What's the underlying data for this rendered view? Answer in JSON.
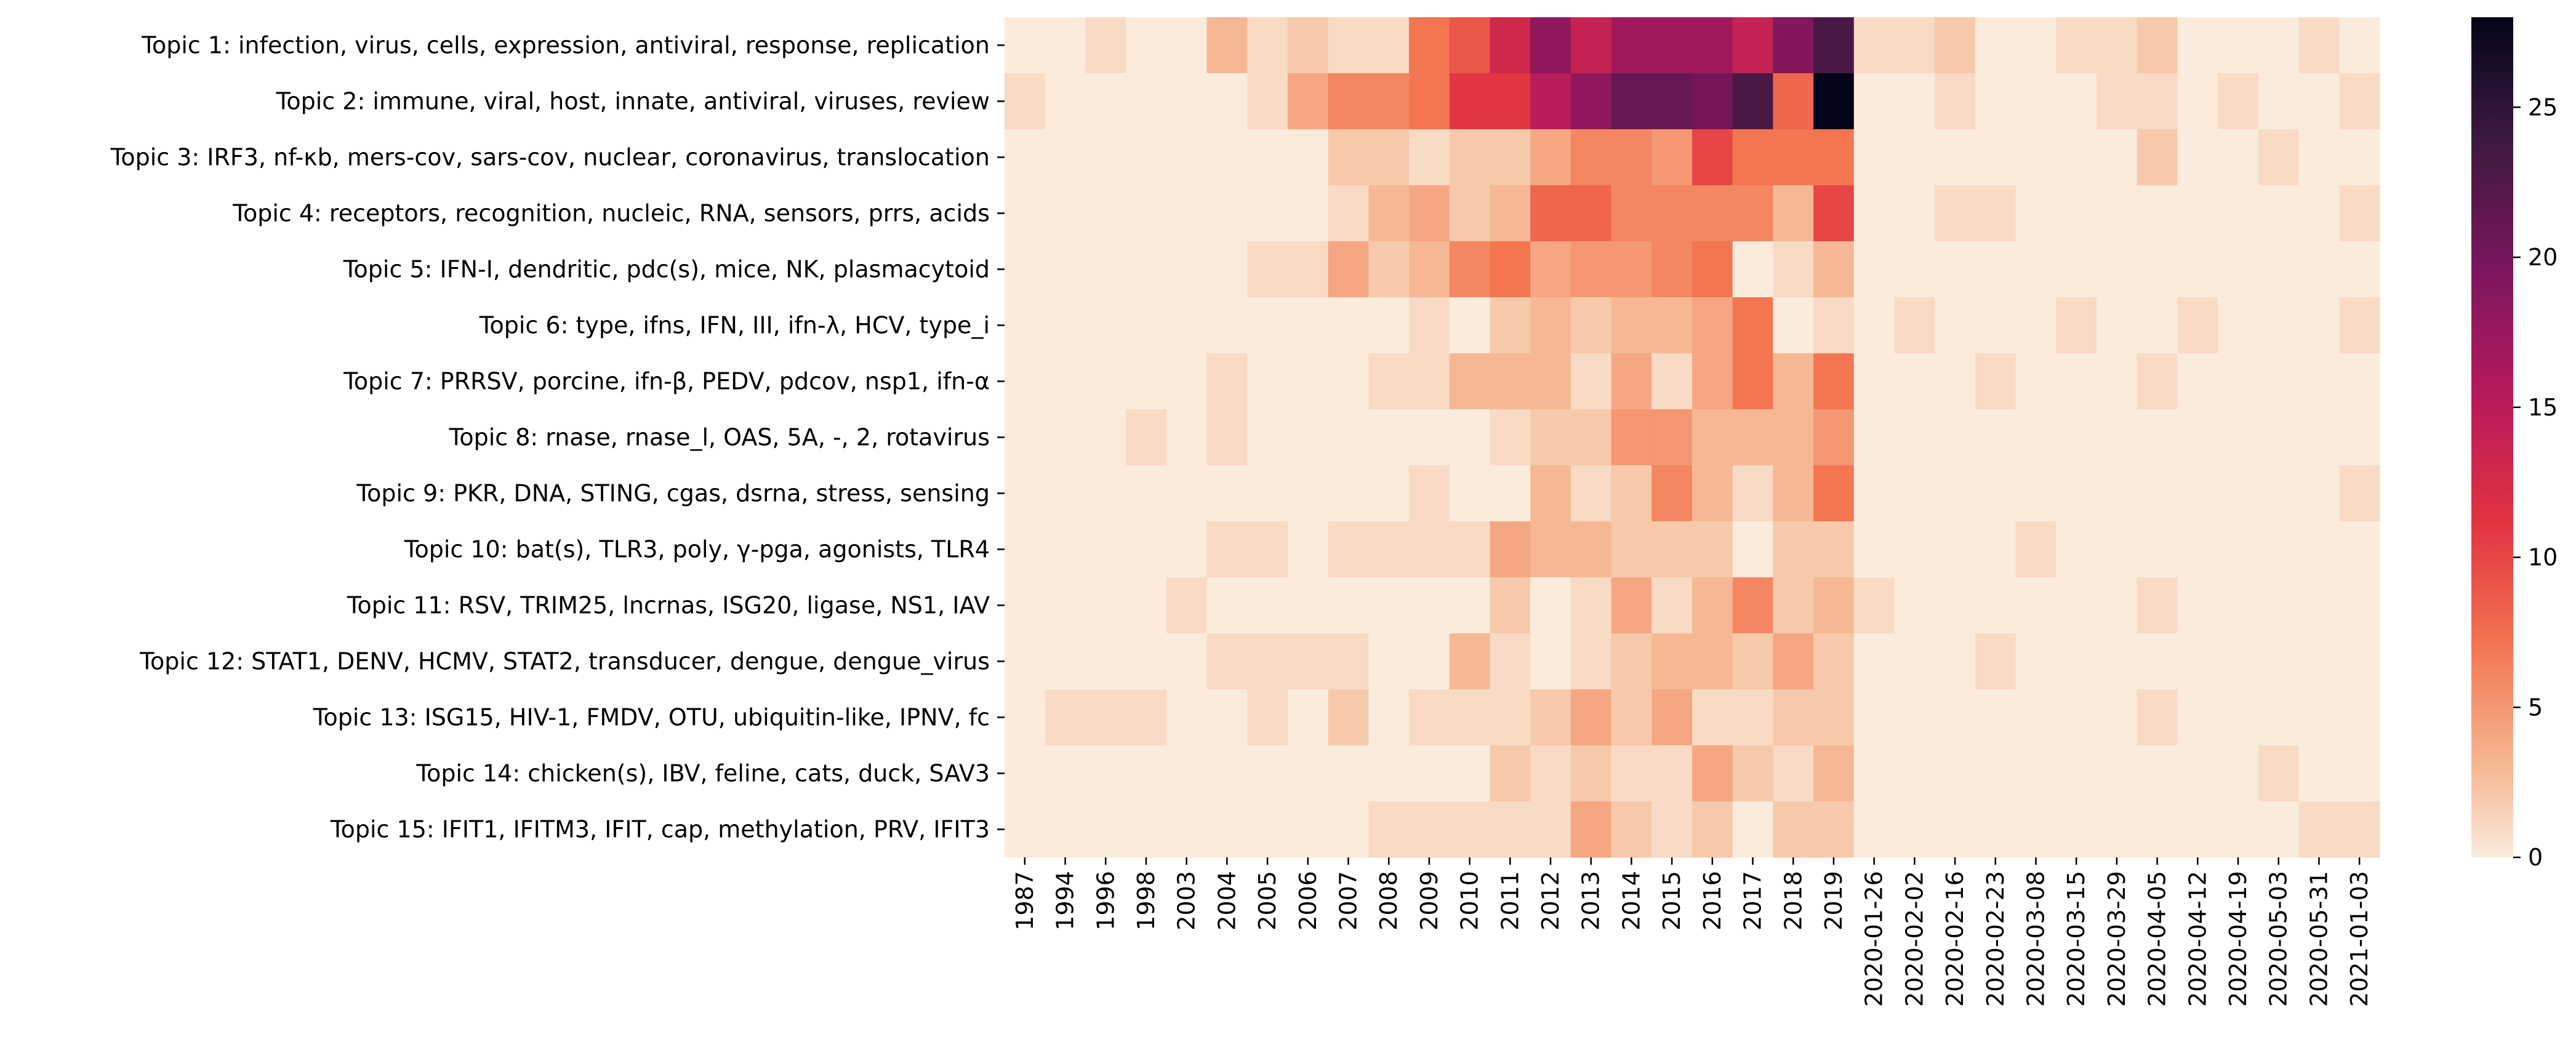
{
  "chart_data": {
    "type": "heatmap",
    "colormap": "rocket",
    "y_categories": [
      "Topic 1: infection, virus, cells, expression, antiviral, response, replication",
      "Topic 2: immune, viral, host, innate, antiviral, viruses, review",
      "Topic 3: IRF3, nf-κb, mers-cov, sars-cov, nuclear, coronavirus, translocation",
      "Topic 4: receptors, recognition, nucleic, RNA, sensors, prrs, acids",
      "Topic 5: IFN-I, dendritic, pdc(s), mice, NK, plasmacytoid",
      "Topic 6: type, ifns, IFN, III, ifn-λ, HCV, type_i",
      "Topic 7: PRRSV, porcine, ifn-β, PEDV, pdcov, nsp1, ifn-α",
      "Topic 8: rnase, rnase_l, OAS, 5A, -, 2, rotavirus",
      "Topic 9: PKR, DNA, STING, cgas, dsrna, stress, sensing",
      "Topic 10: bat(s), TLR3, poly, γ-pga, agonists, TLR4",
      "Topic 11: RSV, TRIM25, lncrnas, ISG20, ligase, NS1, IAV",
      "Topic 12: STAT1, DENV, HCMV, STAT2, transducer, dengue, dengue_virus",
      "Topic 13: ISG15, HIV-1, FMDV, OTU, ubiquitin-like, IPNV, fc",
      "Topic 14: chicken(s), IBV, feline, cats, duck, SAV3",
      "Topic 15: IFIT1, IFITM3, IFIT, cap, methylation, PRV, IFIT3"
    ],
    "x_categories": [
      "1987",
      "1994",
      "1996",
      "1998",
      "2003",
      "2004",
      "2005",
      "2006",
      "2007",
      "2008",
      "2009",
      "2010",
      "2011",
      "2012",
      "2013",
      "2014",
      "2015",
      "2016",
      "2017",
      "2018",
      "2019",
      "2020-01-26",
      "2020-02-02",
      "2020-02-16",
      "2020-02-23",
      "2020-03-08",
      "2020-03-15",
      "2020-03-29",
      "2020-04-05",
      "2020-04-12",
      "2020-04-19",
      "2020-05-03",
      "2020-05-31",
      "2021-01-03"
    ],
    "values": [
      [
        0,
        0,
        1,
        0,
        0,
        3,
        1,
        2,
        1,
        1,
        7,
        9,
        13,
        18,
        14,
        17,
        17,
        17,
        14,
        19,
        23,
        1,
        1,
        2,
        0,
        0,
        1,
        1,
        2,
        0,
        0,
        0,
        1,
        0
      ],
      [
        1,
        0,
        0,
        0,
        0,
        0,
        1,
        4,
        6,
        6,
        7,
        11,
        11,
        15,
        18,
        21,
        21,
        20,
        23,
        8,
        28,
        0,
        0,
        1,
        0,
        0,
        0,
        1,
        1,
        0,
        1,
        0,
        0,
        1
      ],
      [
        0,
        0,
        0,
        0,
        0,
        0,
        0,
        0,
        2,
        2,
        1,
        2,
        2,
        4,
        6,
        6,
        5,
        10,
        7,
        7,
        7,
        0,
        0,
        0,
        0,
        0,
        0,
        0,
        2,
        0,
        0,
        1,
        0,
        0
      ],
      [
        0,
        0,
        0,
        0,
        0,
        0,
        0,
        0,
        1,
        3,
        4,
        2,
        3,
        8,
        8,
        6,
        6,
        6,
        6,
        3,
        10,
        0,
        0,
        1,
        1,
        0,
        0,
        0,
        0,
        0,
        0,
        0,
        0,
        1
      ],
      [
        0,
        0,
        0,
        0,
        0,
        0,
        1,
        1,
        4,
        2,
        3,
        6,
        7,
        4,
        5,
        5,
        6,
        7,
        0,
        1,
        3,
        0,
        0,
        0,
        0,
        0,
        0,
        0,
        0,
        0,
        0,
        0,
        0,
        0
      ],
      [
        0,
        0,
        0,
        0,
        0,
        0,
        0,
        0,
        0,
        0,
        1,
        0,
        2,
        3,
        2,
        3,
        3,
        4,
        7,
        0,
        1,
        0,
        1,
        0,
        0,
        0,
        1,
        0,
        0,
        1,
        0,
        0,
        0,
        1
      ],
      [
        0,
        0,
        0,
        0,
        0,
        1,
        0,
        0,
        0,
        1,
        1,
        3,
        3,
        3,
        1,
        4,
        1,
        4,
        7,
        3,
        7,
        0,
        0,
        0,
        1,
        0,
        0,
        0,
        1,
        0,
        0,
        0,
        0,
        0
      ],
      [
        0,
        0,
        0,
        1,
        0,
        1,
        0,
        0,
        0,
        0,
        0,
        0,
        1,
        2,
        2,
        5,
        5,
        3,
        3,
        3,
        5,
        0,
        0,
        0,
        0,
        0,
        0,
        0,
        0,
        0,
        0,
        0,
        0,
        0
      ],
      [
        0,
        0,
        0,
        0,
        0,
        0,
        0,
        0,
        0,
        0,
        1,
        0,
        0,
        3,
        1,
        2,
        6,
        3,
        1,
        3,
        7,
        0,
        0,
        0,
        0,
        0,
        0,
        0,
        0,
        0,
        0,
        0,
        0,
        1
      ],
      [
        0,
        0,
        0,
        0,
        0,
        1,
        1,
        0,
        1,
        1,
        1,
        1,
        4,
        3,
        3,
        2,
        2,
        2,
        0,
        2,
        2,
        0,
        0,
        0,
        0,
        1,
        0,
        0,
        0,
        0,
        0,
        0,
        0,
        0
      ],
      [
        0,
        0,
        0,
        0,
        1,
        0,
        0,
        0,
        0,
        0,
        0,
        0,
        2,
        0,
        1,
        4,
        1,
        3,
        6,
        2,
        3,
        1,
        0,
        0,
        0,
        0,
        0,
        0,
        1,
        0,
        0,
        0,
        0,
        0
      ],
      [
        0,
        0,
        0,
        0,
        0,
        1,
        1,
        1,
        1,
        0,
        0,
        3,
        1,
        0,
        1,
        2,
        3,
        3,
        2,
        4,
        2,
        0,
        0,
        0,
        1,
        0,
        0,
        0,
        0,
        0,
        0,
        0,
        0,
        0
      ],
      [
        0,
        1,
        1,
        1,
        0,
        0,
        1,
        0,
        2,
        0,
        1,
        1,
        1,
        2,
        4,
        2,
        4,
        1,
        1,
        2,
        2,
        0,
        0,
        0,
        0,
        0,
        0,
        0,
        1,
        0,
        0,
        0,
        0,
        0
      ],
      [
        0,
        0,
        0,
        0,
        0,
        0,
        0,
        0,
        0,
        0,
        0,
        0,
        2,
        1,
        2,
        1,
        1,
        4,
        2,
        1,
        3,
        0,
        0,
        0,
        0,
        0,
        0,
        0,
        0,
        0,
        0,
        1,
        0,
        0
      ],
      [
        0,
        0,
        0,
        0,
        0,
        0,
        0,
        0,
        0,
        1,
        1,
        1,
        1,
        1,
        4,
        2,
        1,
        2,
        0,
        2,
        2,
        0,
        0,
        0,
        0,
        0,
        0,
        0,
        0,
        0,
        0,
        0,
        1,
        1
      ]
    ],
    "colorbar": {
      "min": 0,
      "max": 28,
      "ticks": [
        0,
        5,
        10,
        15,
        20,
        25
      ]
    }
  }
}
